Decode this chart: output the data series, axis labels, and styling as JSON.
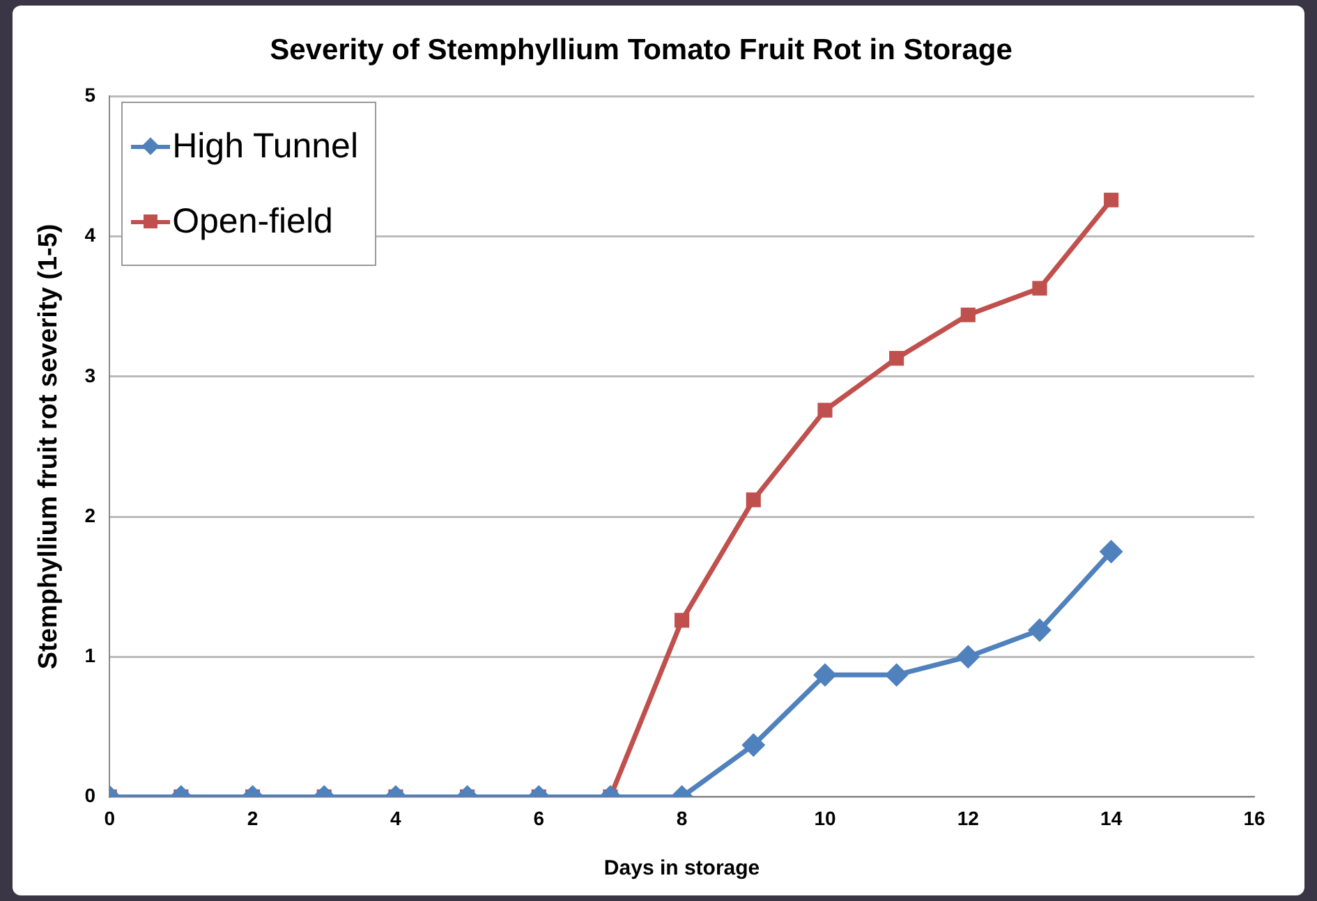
{
  "chart_data": {
    "type": "line",
    "title": "Severity of Stemphyllium Tomato Fruit Rot in Storage",
    "xlabel": "Days in storage",
    "ylabel": "Stemphyllium fruit rot severity (1-5)",
    "x": [
      0,
      1,
      2,
      3,
      4,
      5,
      6,
      7,
      8,
      9,
      10,
      11,
      12,
      13,
      14
    ],
    "series": [
      {
        "name": "High Tunnel",
        "color": "#4f81bd",
        "marker": "diamond",
        "values": [
          0,
          0,
          0,
          0,
          0,
          0,
          0,
          0,
          0,
          0.37,
          0.87,
          0.87,
          1.0,
          1.19,
          1.75
        ]
      },
      {
        "name": "Open-field",
        "color": "#c0504d",
        "marker": "square",
        "values": [
          0,
          0,
          0,
          0,
          0,
          0,
          0,
          0,
          1.26,
          2.12,
          2.76,
          3.13,
          3.44,
          3.63,
          4.26
        ]
      }
    ],
    "xlim": [
      0,
      16
    ],
    "xticks": [
      0,
      2,
      4,
      6,
      8,
      10,
      12,
      14,
      16
    ],
    "ylim": [
      0,
      5
    ],
    "yticks": [
      0,
      1,
      2,
      3,
      4,
      5
    ],
    "grid": "y",
    "legend": "top left"
  }
}
